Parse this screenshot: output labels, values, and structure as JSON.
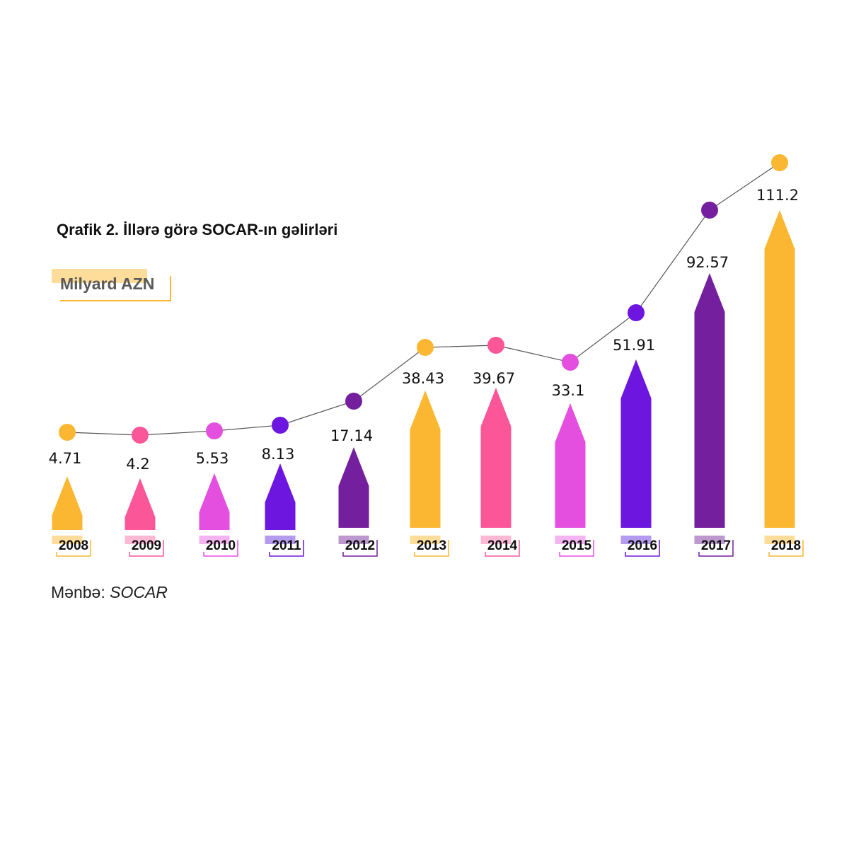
{
  "chart_data": {
    "type": "bar",
    "title": "Qrafik 2. İllərə görə SOCAR-ın gəlirləri",
    "ylabel": "Milyard AZN",
    "categories": [
      "2008",
      "2009",
      "2010",
      "2011",
      "2012",
      "2013",
      "2014",
      "2015",
      "2016",
      "2017",
      "2018"
    ],
    "values": [
      4.71,
      4.2,
      5.53,
      8.13,
      17.14,
      38.43,
      39.67,
      33.1,
      51.91,
      92.57,
      111.2
    ],
    "value_labels": [
      "4.71",
      "4.2",
      "5.53",
      "8.13",
      "17.14",
      "38.43",
      "39.67",
      "33.1",
      "51.91",
      "92.57",
      "111.2"
    ],
    "overlay": "line",
    "colors": [
      "#FBB731",
      "#FB5798",
      "#E54FE0",
      "#6C16E0",
      "#741F9E",
      "#FBB731",
      "#FB5798",
      "#E54FE0",
      "#6C16E0",
      "#741F9E",
      "#FBB731"
    ],
    "highlight_colors": [
      "#FEDD9A",
      "#FDB9D4",
      "#F4B3F1",
      "#B59BEF",
      "#BC98CF",
      "#FEDD9A",
      "#FDB9D4",
      "#F4B3F1",
      "#B59BEF",
      "#BC98CF",
      "#FEDD9A"
    ],
    "line_color": "#555555"
  },
  "source_label": "Mənbə:",
  "source_name": "SOCAR"
}
